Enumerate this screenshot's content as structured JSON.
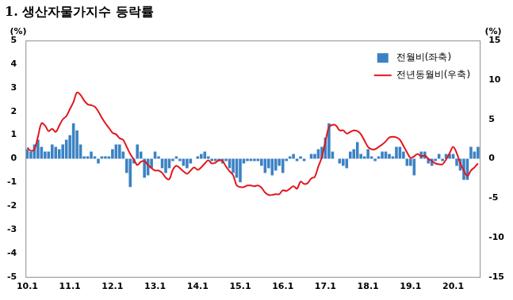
{
  "chart_data": {
    "type": "bar",
    "title": "1. 생산자물가지수 등락률",
    "y_label": "(%)",
    "y2_label": "(%)",
    "categories": [
      "10.1",
      null,
      null,
      null,
      null,
      null,
      null,
      null,
      null,
      null,
      null,
      null,
      "11.1",
      null,
      null,
      null,
      null,
      null,
      null,
      null,
      null,
      null,
      null,
      null,
      "12.1",
      null,
      null,
      null,
      null,
      null,
      null,
      null,
      null,
      null,
      null,
      null,
      "13.1",
      null,
      null,
      null,
      null,
      null,
      null,
      null,
      null,
      null,
      null,
      null,
      "14.1",
      null,
      null,
      null,
      null,
      null,
      null,
      null,
      null,
      null,
      null,
      null,
      "15.1",
      null,
      null,
      null,
      null,
      null,
      null,
      null,
      null,
      null,
      null,
      null,
      "16.1",
      null,
      null,
      null,
      null,
      null,
      null,
      null,
      null,
      null,
      null,
      null,
      "17.1",
      null,
      null,
      null,
      null,
      null,
      null,
      null,
      null,
      null,
      null,
      null,
      "18.1",
      null,
      null,
      null,
      null,
      null,
      null,
      null,
      null,
      null,
      null,
      null,
      "19.1",
      null,
      null,
      null,
      null,
      null,
      null,
      null,
      null,
      null,
      null,
      null,
      "20.1",
      null,
      null,
      null,
      null,
      null,
      null,
      null
    ],
    "series": [
      {
        "name": "전월비(좌축)",
        "type": "bar",
        "color": "#3b82c4",
        "values": [
          0.4,
          0.3,
          0.6,
          0.8,
          0.5,
          0.3,
          0.3,
          0.6,
          0.5,
          0.4,
          0.6,
          0.8,
          1.0,
          1.5,
          1.2,
          0.6,
          0.1,
          0.1,
          0.3,
          0.1,
          -0.2,
          0.1,
          0.1,
          0.1,
          0.4,
          0.6,
          0.6,
          0.3,
          -0.6,
          -1.2,
          -0.2,
          0.6,
          0.3,
          -0.8,
          -0.7,
          -0.4,
          0.3,
          0.1,
          -0.4,
          -0.6,
          -0.4,
          -0.1,
          0.1,
          -0.1,
          -0.3,
          -0.4,
          -0.2,
          0.0,
          0.1,
          0.2,
          0.3,
          0.1,
          -0.1,
          -0.1,
          -0.1,
          -0.2,
          -0.1,
          -0.4,
          -0.6,
          -0.8,
          -1.0,
          -0.2,
          -0.1,
          -0.1,
          -0.1,
          -0.1,
          -0.3,
          -0.6,
          -0.4,
          -0.7,
          -0.5,
          -0.3,
          -0.6,
          -0.1,
          0.1,
          0.2,
          -0.1,
          0.1,
          -0.1,
          0.0,
          0.2,
          0.2,
          0.4,
          0.5,
          0.9,
          1.5,
          0.3,
          0.0,
          -0.2,
          -0.3,
          -0.4,
          0.3,
          0.4,
          0.7,
          0.2,
          0.1,
          0.4,
          0.1,
          -0.1,
          0.1,
          0.3,
          0.3,
          0.2,
          0.1,
          0.5,
          0.5,
          0.3,
          -0.3,
          -0.3,
          -0.7,
          0.0,
          0.3,
          0.3,
          -0.2,
          -0.3,
          -0.1,
          0.2,
          -0.1,
          0.2,
          0.2,
          0.2,
          -0.3,
          -0.5,
          -0.9,
          -0.9,
          0.5,
          0.3,
          0.5
        ]
      },
      {
        "name": "전년동월비(우축)",
        "type": "line",
        "axis": "y2",
        "color": "#e3161c",
        "values": [
          1.4,
          1.0,
          1.2,
          2.8,
          4.5,
          4.2,
          3.5,
          3.8,
          3.4,
          4.2,
          5.0,
          5.4,
          6.3,
          7.2,
          8.4,
          8.1,
          7.4,
          6.9,
          6.8,
          6.6,
          6.0,
          5.2,
          4.5,
          3.9,
          3.3,
          3.1,
          2.6,
          2.4,
          1.5,
          0.6,
          -0.1,
          -0.8,
          -0.4,
          -0.3,
          -0.8,
          -1.2,
          -1.5,
          -1.5,
          -1.8,
          -2.4,
          -2.6,
          -1.4,
          -0.9,
          -1.2,
          -1.6,
          -1.9,
          -1.5,
          -1.1,
          -1.4,
          -1.1,
          -0.6,
          -0.2,
          -0.6,
          -0.5,
          -0.2,
          -0.3,
          -1.0,
          -1.6,
          -2.1,
          -3.4,
          -3.6,
          -3.6,
          -3.4,
          -3.4,
          -3.5,
          -3.4,
          -3.7,
          -4.3,
          -4.6,
          -4.6,
          -4.5,
          -4.5,
          -4.0,
          -4.1,
          -3.8,
          -3.5,
          -3.8,
          -2.9,
          -3.2,
          -3.1,
          -2.5,
          -2.3,
          -1.0,
          0.2,
          2.2,
          4.0,
          4.3,
          4.2,
          3.6,
          3.6,
          3.2,
          3.4,
          3.6,
          3.5,
          3.1,
          2.3,
          1.5,
          1.2,
          1.2,
          1.5,
          1.8,
          2.2,
          2.7,
          2.8,
          2.7,
          2.4,
          1.6,
          0.8,
          0.1,
          0.3,
          0.6,
          0.3,
          0.4,
          0.0,
          -0.3,
          -0.6,
          -0.7,
          -0.7,
          -0.1,
          0.7,
          1.5,
          0.7,
          -0.6,
          -1.5,
          -2.2,
          -1.5,
          -1.1,
          -0.6
        ]
      }
    ],
    "ylim": [
      -5,
      5
    ],
    "yticks": [
      -5,
      -4,
      -3,
      -2,
      -1,
      0,
      1,
      2,
      3,
      4,
      5
    ],
    "y2lim": [
      -15,
      15
    ],
    "y2ticks": [
      -15,
      -10,
      -5,
      0,
      5,
      10,
      15
    ],
    "grid": false,
    "legend": "upper right"
  }
}
